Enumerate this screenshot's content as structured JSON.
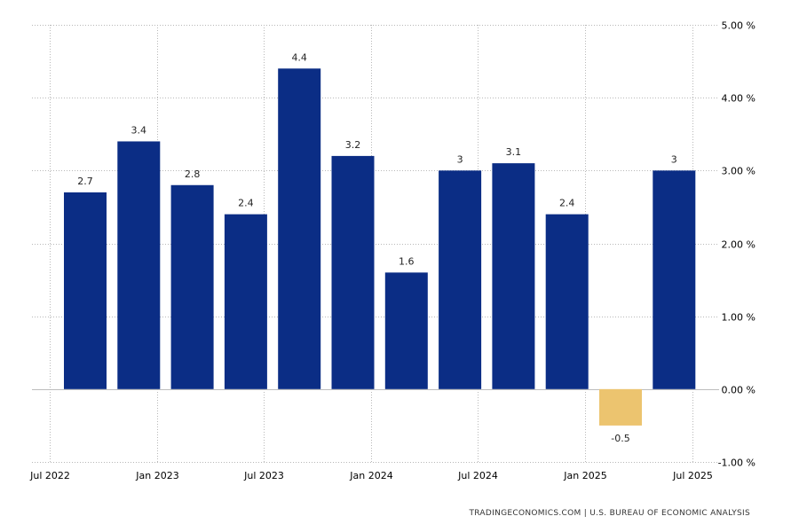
{
  "chart_data": {
    "type": "bar",
    "categories": [
      "2022 Q3",
      "2022 Q4",
      "2023 Q1",
      "2023 Q2",
      "2023 Q3",
      "2023 Q4",
      "2024 Q1",
      "2024 Q2",
      "2024 Q3",
      "2024 Q4",
      "2025 Q1",
      "2025 Q2"
    ],
    "values": [
      2.7,
      3.4,
      2.8,
      2.4,
      4.4,
      3.2,
      1.6,
      3,
      3.1,
      2.4,
      -0.5,
      3
    ],
    "data_labels": [
      "2.7",
      "3.4",
      "2.8",
      "2.4",
      "4.4",
      "3.2",
      "1.6",
      "3",
      "3.1",
      "2.4",
      "-0.5",
      "3"
    ],
    "x_ticks": [
      "Jul 2022",
      "Jan 2023",
      "Jul 2023",
      "Jan 2024",
      "Jul 2024",
      "Jan 2025",
      "Jul 2025"
    ],
    "y_ticks": [
      "5.00 %",
      "4.00 %",
      "3.00 %",
      "2.00 %",
      "1.00 %",
      "0.00 %",
      "-1.00 %"
    ],
    "y_tick_values": [
      5,
      4,
      3,
      2,
      1,
      0,
      -1
    ],
    "ylim": [
      -1,
      5
    ],
    "y_axis_side": "right",
    "grid": true,
    "title": "",
    "xlabel": "",
    "ylabel": "",
    "colors": {
      "positive": "#0b2d85",
      "negative": "#ecc46f"
    }
  },
  "source": "TRADINGECONOMICS.COM  |  U.S. BUREAU OF ECONOMIC ANALYSIS"
}
